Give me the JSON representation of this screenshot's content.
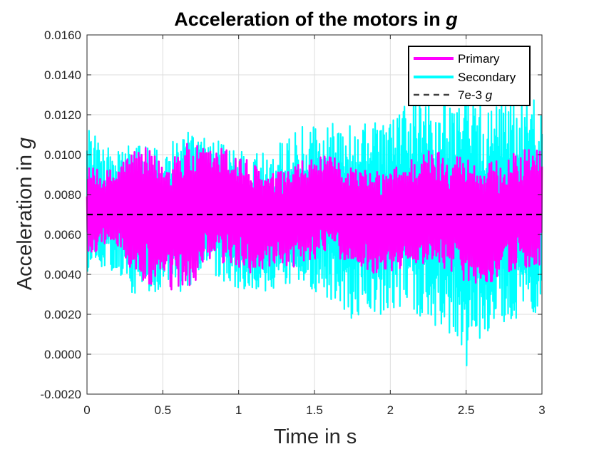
{
  "chart_data": {
    "type": "line",
    "title": "Acceleration of the motors in ",
    "title_var": "g",
    "xlabel": "Time in s",
    "ylabel": "Acceleration in ",
    "ylabel_var": "g",
    "xlim": [
      0,
      3
    ],
    "ylim": [
      -0.002,
      0.016
    ],
    "xticks": [
      "0",
      "0.5",
      "1",
      "1.5",
      "2",
      "2.5",
      "3"
    ],
    "yticks": [
      "-0.0020",
      "0.0000",
      "0.0020",
      "0.0040",
      "0.0060",
      "0.0080",
      "0.0100",
      "0.0120",
      "0.0140",
      "0.0160"
    ],
    "grid": true,
    "legend_position": "top-right",
    "reference_line": {
      "name": "7e-3 ",
      "name_var": "g",
      "y": 0.007,
      "color": "#000000",
      "style": "dashed"
    },
    "series": [
      {
        "name": "Primary",
        "color": "#ff00ff",
        "envelope": {
          "t": [
            0,
            0.1,
            0.2,
            0.3,
            0.4,
            0.5,
            0.6,
            0.7,
            0.8,
            0.9,
            1.0,
            1.2,
            1.4,
            1.6,
            1.8,
            2.0,
            2.2,
            2.4,
            2.5,
            2.6,
            2.8,
            3.0
          ],
          "amp": [
            0.0025,
            0.0018,
            0.002,
            0.0032,
            0.0035,
            0.003,
            0.004,
            0.0035,
            0.003,
            0.003,
            0.003,
            0.0025,
            0.0026,
            0.0025,
            0.0025,
            0.0026,
            0.0028,
            0.003,
            0.0032,
            0.003,
            0.003,
            0.003
          ]
        }
      },
      {
        "name": "Secondary",
        "color": "#00ffff",
        "envelope": {
          "t": [
            0,
            0.1,
            0.2,
            0.3,
            0.4,
            0.5,
            0.6,
            0.7,
            0.8,
            0.9,
            1.0,
            1.2,
            1.4,
            1.6,
            1.8,
            2.0,
            2.2,
            2.4,
            2.5,
            2.6,
            2.8,
            3.0
          ],
          "amp": [
            0.0042,
            0.003,
            0.0032,
            0.0038,
            0.0038,
            0.0036,
            0.004,
            0.0038,
            0.0035,
            0.0035,
            0.0035,
            0.0035,
            0.004,
            0.0045,
            0.005,
            0.0048,
            0.0055,
            0.006,
            0.0075,
            0.006,
            0.006,
            0.0058
          ]
        }
      }
    ]
  }
}
